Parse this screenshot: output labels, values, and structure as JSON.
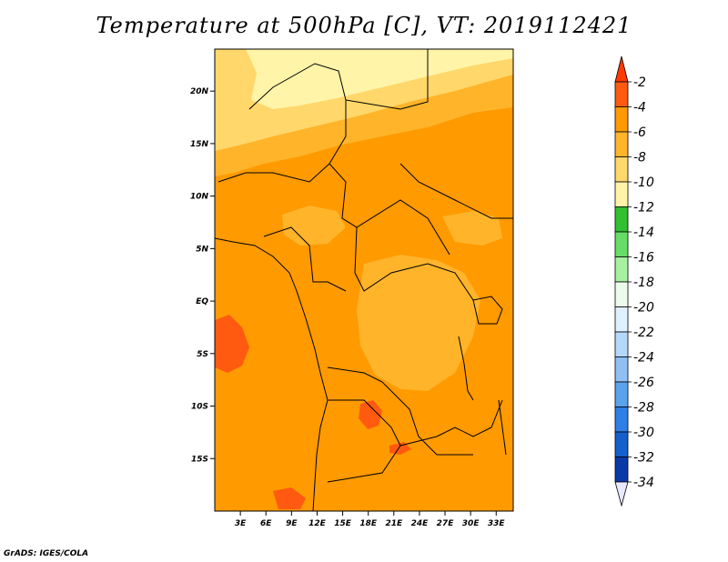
{
  "title": "Temperature at 500hPa [C], VT: 2019112421",
  "credit": "GrADS: IGES/COLA",
  "map": {
    "lon_range": [
      0,
      35
    ],
    "lat_range": [
      -20,
      24
    ],
    "lat_ticks": [
      {
        "value": 20,
        "label": "20N"
      },
      {
        "value": 15,
        "label": "15N"
      },
      {
        "value": 10,
        "label": "10N"
      },
      {
        "value": 5,
        "label": "5N"
      },
      {
        "value": 0,
        "label": "EQ"
      },
      {
        "value": -5,
        "label": "5S"
      },
      {
        "value": -10,
        "label": "10S"
      },
      {
        "value": -15,
        "label": "15S"
      }
    ],
    "lon_ticks": [
      {
        "value": 3,
        "label": "3E"
      },
      {
        "value": 6,
        "label": "6E"
      },
      {
        "value": 9,
        "label": "9E"
      },
      {
        "value": 12,
        "label": "12E"
      },
      {
        "value": 15,
        "label": "15E"
      },
      {
        "value": 18,
        "label": "18E"
      },
      {
        "value": 21,
        "label": "21E"
      },
      {
        "value": 24,
        "label": "24E"
      },
      {
        "value": 27,
        "label": "27E"
      },
      {
        "value": 30,
        "label": "30E"
      },
      {
        "value": 33,
        "label": "33E"
      }
    ]
  },
  "colorbar": {
    "labels": [
      "-2",
      "-4",
      "-6",
      "-8",
      "-10",
      "-12",
      "-14",
      "-16",
      "-18",
      "-20",
      "-22",
      "-24",
      "-26",
      "-28",
      "-30",
      "-32",
      "-34"
    ],
    "colors": [
      "#ff5a10",
      "#ff9a00",
      "#ffb42a",
      "#ffd76a",
      "#fff4a8",
      "#30c030",
      "#66dd66",
      "#a6f0a0",
      "#ecfcec",
      "#dff0ff",
      "#b4d8fa",
      "#8ec0f4",
      "#5aa4ee",
      "#2e80e6",
      "#1460cc",
      "#0a3aa8"
    ],
    "over_color": "#ff3a00",
    "under_color": "#e8e8ff"
  }
}
